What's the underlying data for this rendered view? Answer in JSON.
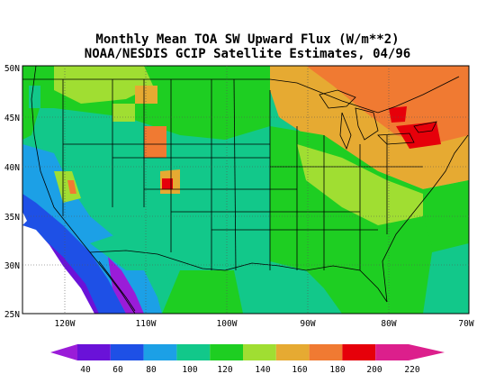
{
  "title": "Monthly Mean TOA SW Upward Flux (W/m**2)",
  "subtitle": "NOAA/NESDIS GCIP Satellite Estimates, 04/96",
  "map": {
    "lat_ticks": [
      "50N",
      "45N",
      "40N",
      "35N",
      "30N",
      "25N"
    ],
    "lon_ticks": [
      "120W",
      "110W",
      "100W",
      "90W",
      "80W",
      "70W"
    ]
  },
  "colorbar": {
    "labels": [
      "40",
      "60",
      "80",
      "100",
      "120",
      "140",
      "160",
      "180",
      "200",
      "220"
    ],
    "colors": [
      "#9a1cd8",
      "#6a12d8",
      "#1e50e6",
      "#1ca0e6",
      "#12c88a",
      "#1ece22",
      "#a0de32",
      "#e6aa32",
      "#f07a32",
      "#e6000a",
      "#dc1f8c"
    ]
  }
}
